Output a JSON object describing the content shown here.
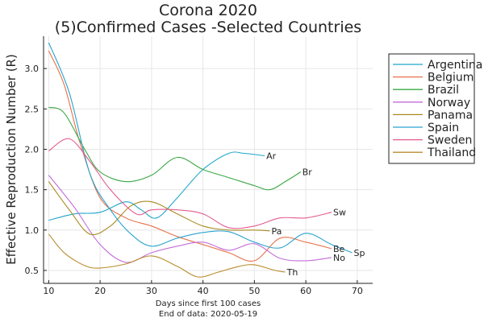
{
  "chart_data": {
    "type": "line",
    "title": "Corona 2020",
    "subtitle": "(5)Confirmed Cases -Selected Countries",
    "xlabel_lines": [
      "Days since first 100 cases",
      "End of data: 2020-05-19"
    ],
    "ylabel": "Effective Reproduction Number (R)",
    "xlim": [
      9,
      73
    ],
    "ylim": [
      0.34,
      3.4
    ],
    "xticks": [
      10,
      20,
      30,
      40,
      50,
      60,
      70
    ],
    "yticks": [
      0.5,
      1.0,
      1.5,
      2.0,
      2.5,
      3.0
    ],
    "xtick_labels": [
      "10",
      "20",
      "30",
      "40",
      "50",
      "60",
      "70"
    ],
    "ytick_labels": [
      "0.5",
      "1.0",
      "1.5",
      "2.0",
      "2.5",
      "3.0"
    ],
    "grid": true,
    "legend_position": "top-right",
    "series": [
      {
        "name": "Argentina",
        "color": "#1fa6c9",
        "end_label": "Ar",
        "x": [
          10,
          15,
          20,
          25,
          28,
          31,
          35,
          40,
          45,
          48,
          52
        ],
        "y": [
          1.12,
          1.2,
          1.22,
          1.35,
          1.25,
          1.15,
          1.4,
          1.75,
          1.95,
          1.95,
          1.92
        ]
      },
      {
        "name": "Belgium",
        "color": "#e8714a",
        "end_label": "Be",
        "x": [
          10,
          13,
          16,
          20,
          25,
          30,
          35,
          40,
          45,
          50,
          55,
          60,
          65
        ],
        "y": [
          3.22,
          2.8,
          2.1,
          1.4,
          1.15,
          1.05,
          0.92,
          0.82,
          0.72,
          0.62,
          0.9,
          0.85,
          0.77
        ]
      },
      {
        "name": "Brazil",
        "color": "#3aa843",
        "end_label": "Br",
        "x": [
          10,
          13,
          17,
          20,
          25,
          30,
          35,
          40,
          45,
          50,
          53,
          56,
          59
        ],
        "y": [
          2.52,
          2.45,
          2.0,
          1.72,
          1.6,
          1.68,
          1.9,
          1.75,
          1.65,
          1.55,
          1.5,
          1.6,
          1.72
        ]
      },
      {
        "name": "Norway",
        "color": "#c36ed8",
        "end_label": "No",
        "x": [
          10,
          15,
          20,
          25,
          30,
          35,
          40,
          45,
          50,
          55,
          60,
          65
        ],
        "y": [
          1.68,
          1.28,
          0.82,
          0.6,
          0.72,
          0.8,
          0.85,
          0.75,
          0.83,
          0.65,
          0.62,
          0.66
        ]
      },
      {
        "name": "Panama",
        "color": "#aa8a20",
        "end_label": "Pa",
        "x": [
          10,
          14,
          18,
          22,
          26,
          30,
          35,
          40,
          45,
          50,
          53
        ],
        "y": [
          1.6,
          1.25,
          0.95,
          1.05,
          1.3,
          1.35,
          1.2,
          1.05,
          1.0,
          1.0,
          0.99
        ]
      },
      {
        "name": "Spain",
        "color": "#2aa3cf",
        "end_label": "Sp",
        "x": [
          10,
          14,
          18,
          22,
          26,
          30,
          35,
          40,
          45,
          50,
          55,
          60,
          65,
          69
        ],
        "y": [
          3.32,
          2.7,
          1.7,
          1.25,
          0.95,
          0.8,
          0.9,
          0.97,
          0.98,
          0.85,
          0.78,
          0.96,
          0.82,
          0.72
        ]
      },
      {
        "name": "Sweden",
        "color": "#e45b8f",
        "end_label": "Sw",
        "x": [
          10,
          14,
          18,
          22,
          27,
          30,
          35,
          40,
          45,
          50,
          55,
          60,
          65
        ],
        "y": [
          1.98,
          2.13,
          1.85,
          1.5,
          1.2,
          1.25,
          1.25,
          1.2,
          1.03,
          1.05,
          1.15,
          1.15,
          1.22
        ]
      },
      {
        "name": "Thailand",
        "color": "#b98d2e",
        "end_label": "Th",
        "x": [
          10,
          13,
          17,
          20,
          25,
          30,
          35,
          39,
          43,
          47,
          50,
          54,
          56
        ],
        "y": [
          0.95,
          0.72,
          0.56,
          0.53,
          0.58,
          0.68,
          0.55,
          0.42,
          0.48,
          0.55,
          0.57,
          0.5,
          0.48
        ]
      }
    ]
  }
}
